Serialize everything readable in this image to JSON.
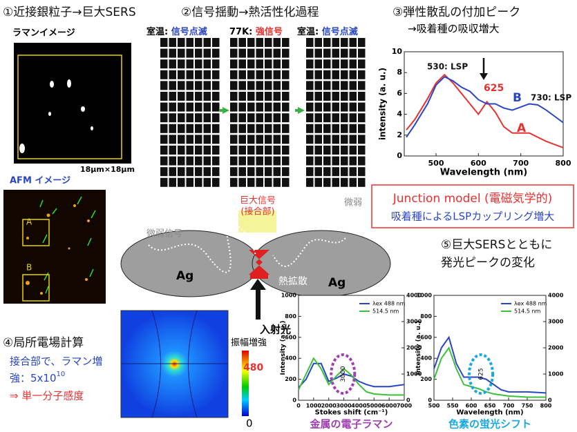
{
  "section1": {
    "title": "①近接銀粒子→巨大SERS",
    "raman_label": "ラマンイメージ",
    "scale": "18μm×18μm",
    "afm_label": "AFM イメージ",
    "marker_a": "A",
    "marker_b": "B"
  },
  "section2": {
    "title": "②信号揺動→熱活性化過程",
    "panels": [
      {
        "condition": "室温:",
        "state": "信号点滅"
      },
      {
        "condition": "77K:",
        "state": "強信号"
      },
      {
        "condition": "室温:",
        "state": "信号点滅"
      }
    ]
  },
  "section3": {
    "title": "③弾性散乱の付加ピーク",
    "subtitle": "→吸着種の吸収増大",
    "chart": {
      "type": "line",
      "xlabel": "Wavelength (nm)",
      "ylabel": "intensity (a. u.)",
      "x": [
        430,
        450,
        480,
        500,
        520,
        540,
        560,
        580,
        600,
        620,
        640,
        660,
        680,
        700,
        720,
        740,
        760,
        780,
        800
      ],
      "series": [
        {
          "name": "A",
          "color": "#e8312f",
          "values": [
            2.5,
            3.5,
            5.5,
            7,
            7.8,
            7,
            6,
            5,
            4,
            5.2,
            4.2,
            2.8,
            2.2,
            2.2,
            2.2,
            1.8,
            1.4,
            1.1,
            0.8
          ]
        },
        {
          "name": "B",
          "color": "#2a45c0",
          "values": [
            1.8,
            3,
            5,
            6.8,
            7.6,
            7.2,
            6.6,
            6.2,
            5.4,
            5,
            5,
            4.6,
            4.4,
            4.7,
            5,
            4.9,
            4.4,
            3.8,
            3.2
          ]
        }
      ],
      "xlim": [
        425,
        800
      ],
      "xticks": [
        500,
        600,
        700,
        800
      ],
      "ylim": [
        0,
        10
      ],
      "yticks": [
        0,
        2,
        4,
        6,
        8,
        10
      ],
      "annotations": [
        "530: LSP",
        "625",
        "730: LSP"
      ]
    }
  },
  "junction": {
    "title": "Junction model (電磁気学的)",
    "subtitle": "吸着種によるLSPカップリング増大"
  },
  "diagram": {
    "particle_left": "Ag",
    "particle_right": "Ag",
    "diffusion": "熱拡散",
    "giant": "巨大信号",
    "giant_sub": "(接合部)",
    "weak_left": "微弱信号",
    "weak_right": "微弱",
    "light": "入射光"
  },
  "section4": {
    "title": "④局所電場計算",
    "line1": "接合部で、ラマン増",
    "line2": "強：5x10",
    "exponent": "10",
    "conclusion": "⇒ 単一分子感度",
    "colorbar_title": "振幅増強",
    "colorbar_max": "480",
    "colorbar_min": "0"
  },
  "section5": {
    "title": "⑤巨大SERSとともに",
    "subtitle": "発光ピークの変化",
    "chart_left": {
      "type": "line",
      "xlabel": "Stokes shift (cm⁻¹)",
      "ylabel": "Intensity (a. u.)",
      "caption": "金属の電子ラマン",
      "marker": "3000",
      "x": [
        0,
        500,
        1000,
        1500,
        2000,
        2500,
        3000,
        3500,
        4000,
        4500,
        5000,
        6000,
        7000
      ],
      "series": [
        {
          "name": "λex 488 nm",
          "color": "#2a45c0",
          "values": [
            120,
            200,
            350,
            350,
            180,
            210,
            250,
            230,
            180,
            150,
            130,
            130,
            150
          ]
        },
        {
          "name": "514.5 nm",
          "color": "#3cc03c",
          "values": [
            100,
            250,
            400,
            300,
            150,
            230,
            300,
            240,
            150,
            80,
            60,
            50,
            50
          ]
        }
      ],
      "xlim": [
        0,
        7000
      ],
      "xticks": [
        0,
        1000,
        2000,
        3000,
        4000,
        5000,
        6000,
        7000
      ],
      "ylim": [
        0,
        1000
      ],
      "yticks": [
        0,
        200,
        400,
        600,
        800,
        1000
      ],
      "y2lim": [
        0,
        4000
      ],
      "y2ticks": [
        0,
        1000,
        2000,
        3000,
        4000
      ]
    },
    "chart_right": {
      "type": "line",
      "xlabel": "Wavelength (nm)",
      "ylabel": "Intensity (a. u.)",
      "caption": "色素の蛍光シフト",
      "marker": "625",
      "x": [
        500,
        520,
        540,
        560,
        580,
        600,
        620,
        640,
        660,
        680,
        700,
        750,
        800
      ],
      "series": [
        {
          "name": "λex 488 nm",
          "color": "#2a45c0",
          "values": [
            300,
            500,
            600,
            350,
            220,
            220,
            220,
            200,
            150,
            100,
            80,
            80,
            70
          ]
        },
        {
          "name": "514.5 nm",
          "color": "#3cc03c",
          "values": [
            200,
            400,
            500,
            300,
            150,
            130,
            110,
            80,
            60,
            50,
            40,
            30,
            30
          ]
        }
      ],
      "xlim": [
        500,
        800
      ],
      "xticks": [
        500,
        550,
        600,
        650,
        700,
        750,
        800
      ],
      "ylim": [
        0,
        1000
      ],
      "yticks": [
        0,
        200,
        400,
        600,
        800,
        1000
      ],
      "y2lim": [
        0,
        4000
      ],
      "y2ticks": [
        0,
        1000,
        2000,
        3000,
        4000
      ]
    }
  }
}
